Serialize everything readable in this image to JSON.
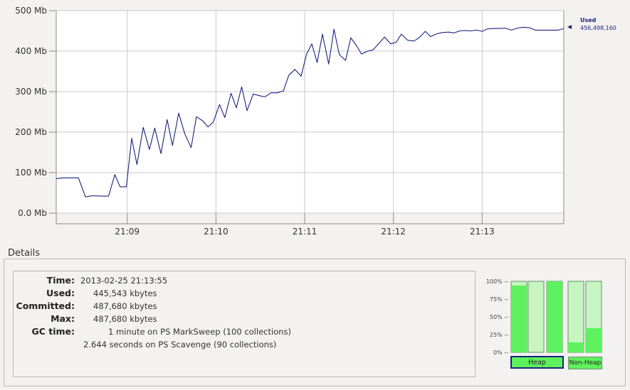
{
  "chart_data": {
    "type": "line",
    "y_tick_labels": [
      "500 Mb",
      "400 Mb",
      "300 Mb",
      "200 Mb",
      "100 Mb",
      "0.0 Mb"
    ],
    "y_tick_values": [
      500,
      400,
      300,
      200,
      100,
      0
    ],
    "x_tick_labels": [
      "21:09",
      "21:10",
      "21:11",
      "21:12",
      "21:13"
    ],
    "x_tick_values": [
      9,
      10,
      11,
      12,
      13
    ],
    "xlim": [
      8.2,
      13.92
    ],
    "ylim": [
      0,
      500
    ],
    "grid": true,
    "series": [
      {
        "name": "Used",
        "color": "#1a237e",
        "x": [
          8.2,
          8.27,
          8.35,
          8.45,
          8.53,
          8.61,
          8.7,
          8.79,
          8.86,
          8.92,
          8.99,
          9.05,
          9.11,
          9.18,
          9.25,
          9.31,
          9.38,
          9.45,
          9.51,
          9.58,
          9.65,
          9.72,
          9.78,
          9.85,
          9.91,
          9.97,
          10.04,
          10.1,
          10.17,
          10.23,
          10.29,
          10.35,
          10.42,
          10.49,
          10.55,
          10.62,
          10.69,
          10.76,
          10.82,
          10.89,
          10.96,
          11.02,
          11.08,
          11.14,
          11.2,
          11.27,
          11.33,
          11.39,
          11.46,
          11.52,
          11.58,
          11.64,
          11.71,
          11.77,
          11.84,
          11.9,
          11.97,
          12.03,
          12.09,
          12.16,
          12.23,
          12.29,
          12.36,
          12.42,
          12.49,
          12.55,
          12.62,
          12.68,
          12.75,
          12.81,
          12.87,
          12.94,
          13.0,
          13.06,
          13.13,
          13.2,
          13.26,
          13.33,
          13.4,
          13.46,
          13.53,
          13.6,
          13.66,
          13.73,
          13.8,
          13.86,
          13.92
        ],
        "y": [
          85,
          87,
          87,
          87,
          40,
          43,
          42,
          42,
          95,
          65,
          65,
          185,
          120,
          212,
          157,
          210,
          147,
          231,
          167,
          247,
          195,
          162,
          238,
          228,
          213,
          225,
          268,
          236,
          296,
          260,
          312,
          253,
          294,
          290,
          287,
          297,
          297,
          302,
          340,
          355,
          338,
          392,
          418,
          372,
          442,
          368,
          454,
          392,
          377,
          433,
          415,
          393,
          400,
          403,
          420,
          435,
          418,
          422,
          442,
          427,
          425,
          433,
          449,
          436,
          443,
          446,
          447,
          445,
          450,
          451,
          450,
          452,
          449,
          455,
          456,
          456,
          457,
          452,
          457,
          459,
          458,
          452,
          452,
          452,
          452,
          452,
          456
        ]
      }
    ],
    "legend": {
      "label": "Used",
      "value": "456,498,160",
      "placement": "right"
    }
  },
  "details": {
    "title": "Details",
    "rows": [
      {
        "label": "Time:",
        "value": "2013-02-25 21:13:55"
      },
      {
        "label": "Used:",
        "value": "445,543 kbytes"
      },
      {
        "label": "Committed:",
        "value": "487,680 kbytes"
      },
      {
        "label": "Max:",
        "value": "487,680 kbytes"
      },
      {
        "label": "GC time:",
        "value": "1 minute on PS MarkSweep (100 collections)"
      }
    ],
    "gc_extra": "2.644 seconds on PS Scavenge (90 collections)"
  },
  "memory_pools": {
    "pct_labels": [
      "100% --",
      "75% --",
      "50% --",
      "25% --",
      "0% --"
    ],
    "heap_fill": [
      0.94,
      0.0,
      1.0
    ],
    "nonheap_fill": [
      0.14,
      0.34
    ],
    "heap_label": "Heap",
    "nonheap_label": "Non-Heap",
    "colors": {
      "used": "#5df25d",
      "committed": "#c6f5c1",
      "selected_border": "#1a237e"
    }
  }
}
